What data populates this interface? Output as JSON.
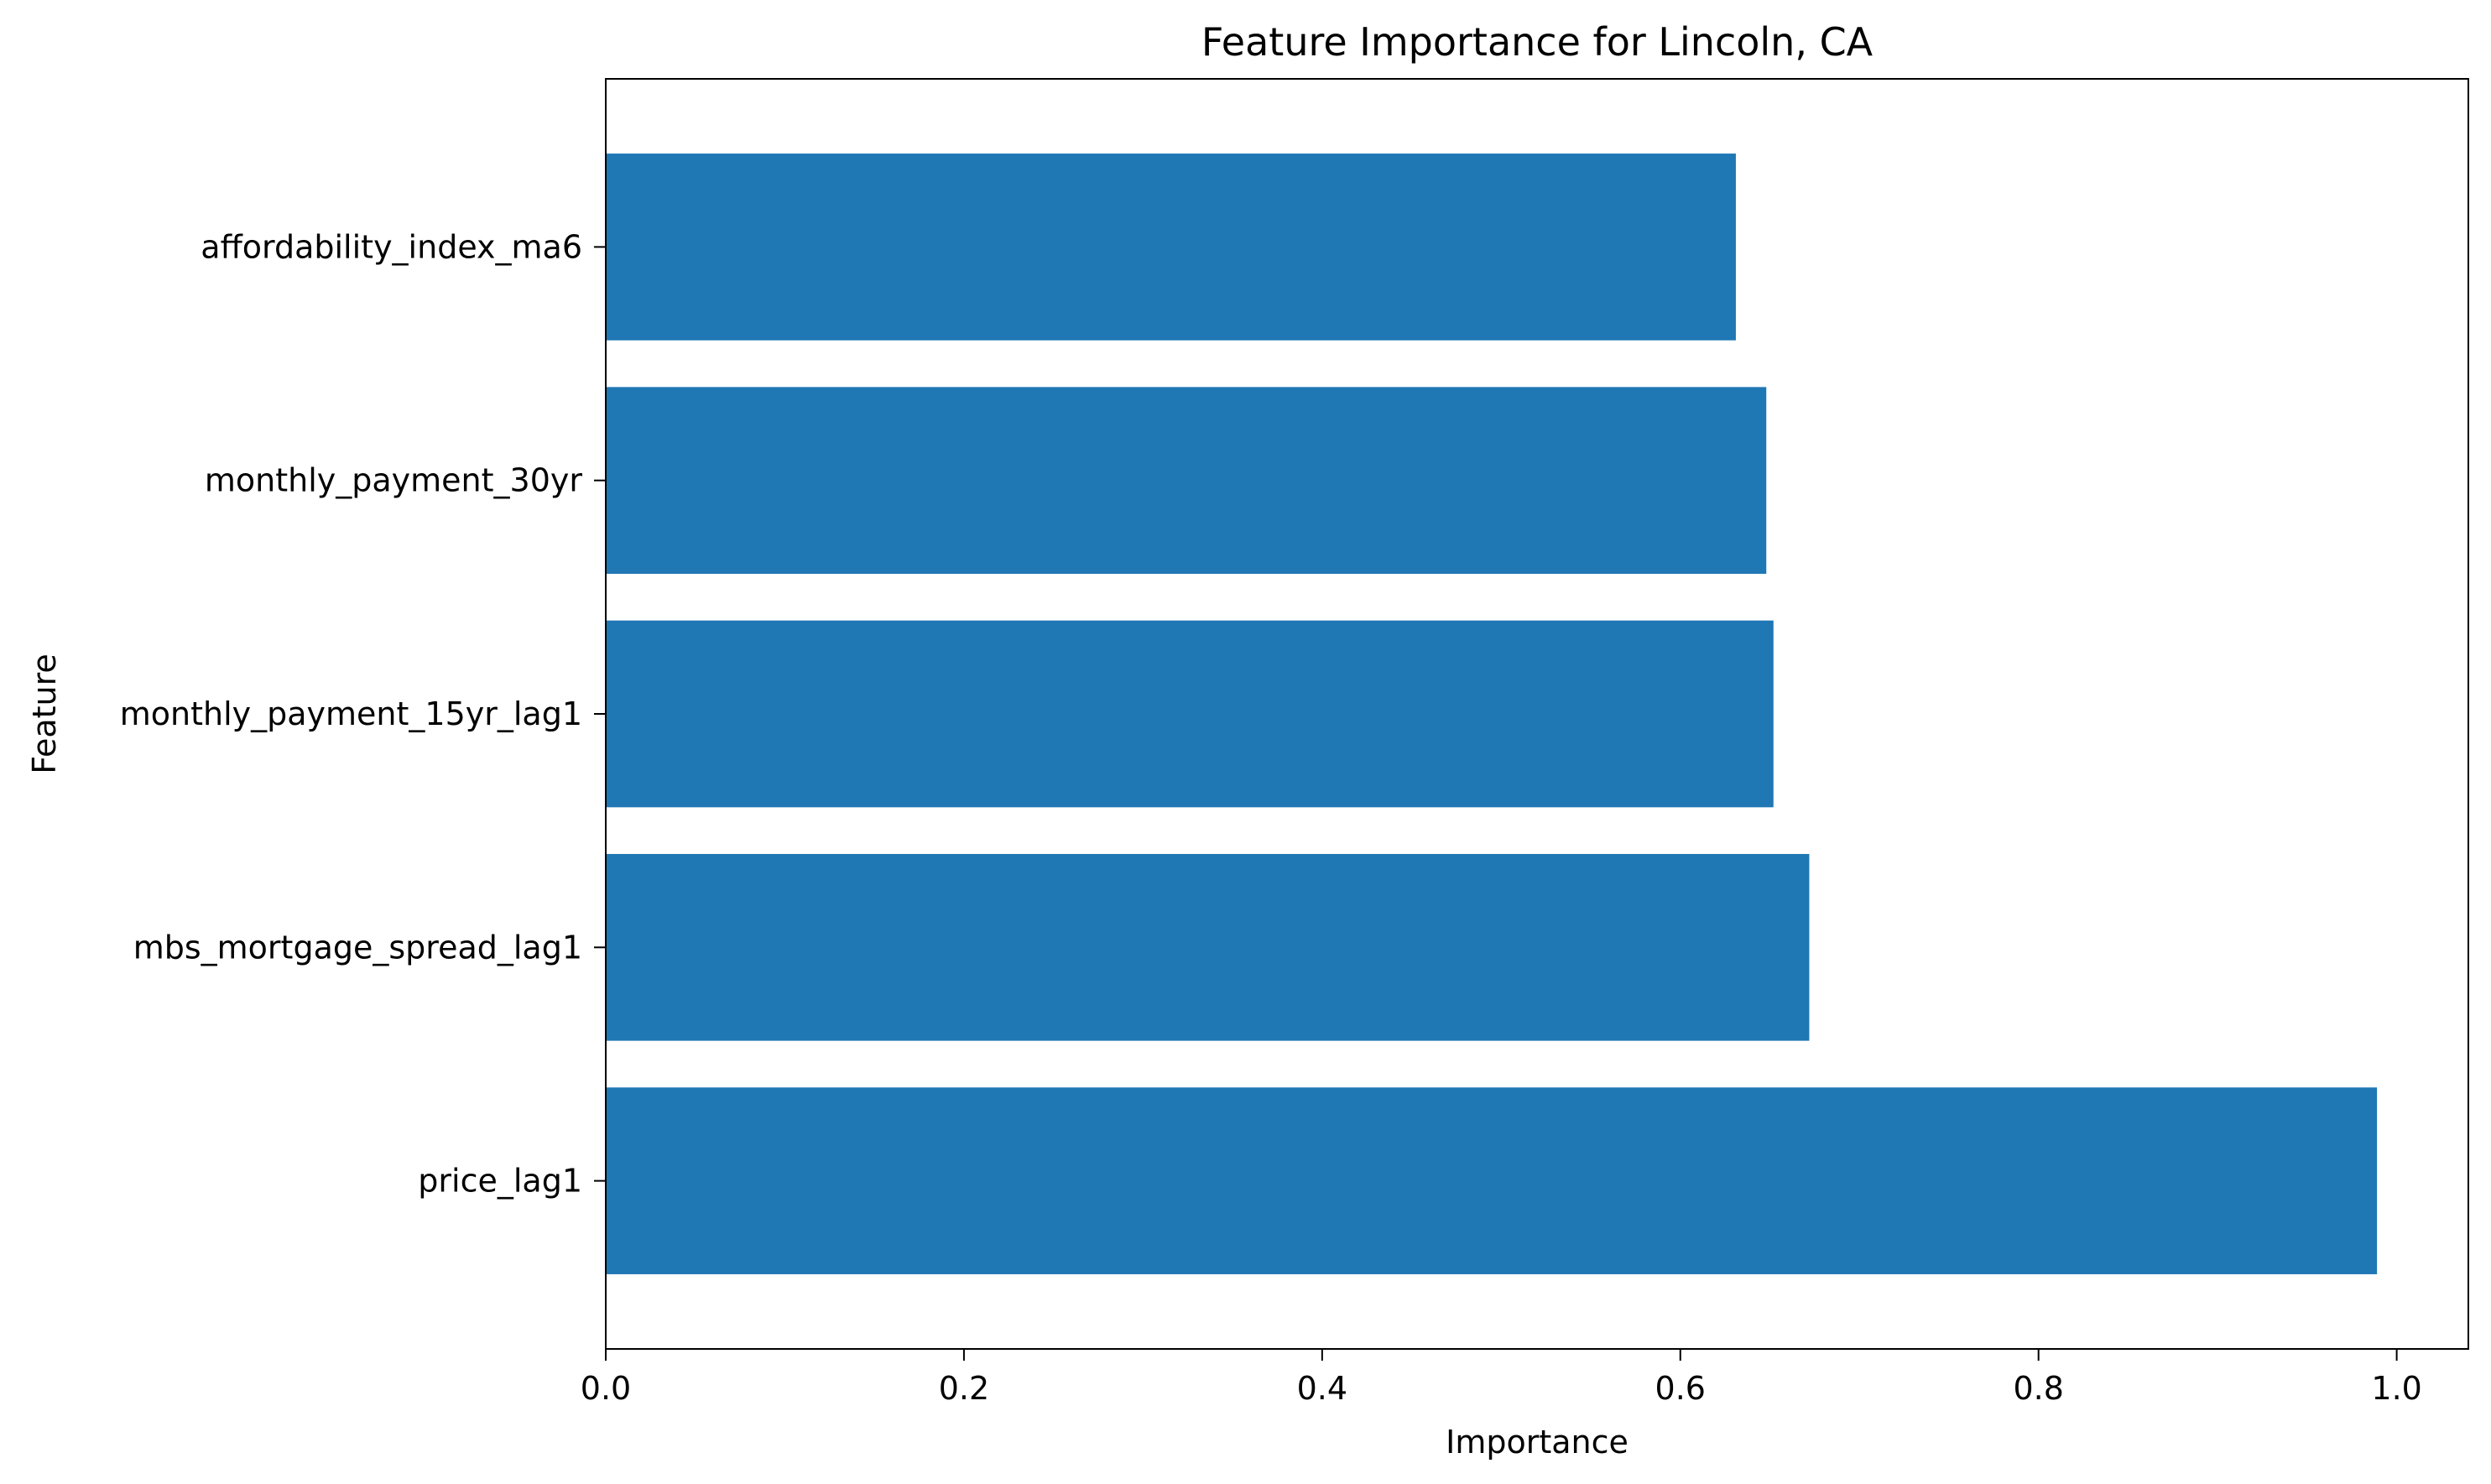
{
  "chart_data": {
    "type": "bar",
    "orientation": "horizontal",
    "title": "Feature Importance for Lincoln, CA",
    "xlabel": "Importance",
    "ylabel": "Feature",
    "categories": [
      "price_lag1",
      "mbs_mortgage_spread_lag1",
      "monthly_payment_15yr_lag1",
      "monthly_payment_30yr",
      "affordability_index_ma6"
    ],
    "values": [
      0.989,
      0.672,
      0.652,
      0.648,
      0.631
    ],
    "xlim": [
      0.0,
      1.04
    ],
    "xticks": [
      "0.0",
      "0.2",
      "0.4",
      "0.6",
      "0.8",
      "1.0"
    ],
    "grid": false,
    "legend": "none",
    "bar_color": "#1f77b4"
  }
}
